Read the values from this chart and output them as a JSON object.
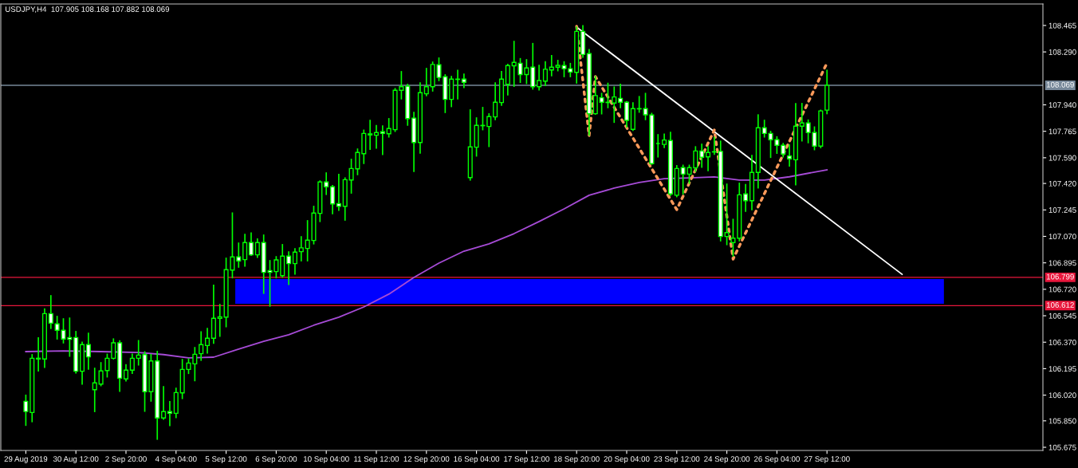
{
  "chart_data": {
    "type": "candlestick",
    "title": "USDJPY,H4  107.905 108.168 107.882 108.069",
    "categories": [
      "29 Aug 2019",
      null,
      null,
      null,
      null,
      null,
      null,
      null,
      "30 Aug 12:00",
      null,
      null,
      null,
      null,
      null,
      null,
      null,
      "2 Sep 20:00",
      null,
      null,
      null,
      null,
      null,
      null,
      null,
      "4 Sep 04:00",
      null,
      null,
      null,
      null,
      null,
      null,
      null,
      "5 Sep 12:00",
      null,
      null,
      null,
      null,
      null,
      null,
      null,
      "6 Sep 20:00",
      null,
      null,
      null,
      null,
      null,
      null,
      null,
      "10 Sep 04:00",
      null,
      null,
      null,
      null,
      null,
      null,
      null,
      "11 Sep 12:00",
      null,
      null,
      null,
      null,
      null,
      null,
      null,
      "12 Sep 20:00",
      null,
      null,
      null,
      null,
      null,
      null,
      null,
      "16 Sep 04:00",
      null,
      null,
      null,
      null,
      null,
      null,
      null,
      "17 Sep 12:00",
      null,
      null,
      null,
      null,
      null,
      null,
      null,
      "18 Sep 20:00",
      null,
      null,
      null,
      null,
      null,
      null,
      null,
      "20 Sep 04:00",
      null,
      null,
      null,
      null,
      null,
      null,
      null,
      "23 Sep 12:00",
      null,
      null,
      null,
      null,
      null,
      null,
      null,
      "24 Sep 20:00",
      null,
      null,
      null,
      null,
      null,
      null,
      null,
      "26 Sep 04:00",
      null,
      null,
      null,
      null,
      null,
      null,
      null,
      "27 Sep 12:00",
      null,
      null,
      null,
      null,
      null,
      null,
      null,
      null,
      null,
      null,
      null,
      null,
      null,
      null,
      null,
      null,
      null,
      null,
      null,
      null,
      null,
      null,
      null,
      null,
      null,
      null,
      null,
      null,
      null,
      null,
      null,
      null,
      null,
      null
    ],
    "ohlc": [
      [
        105.979,
        106.019,
        105.821,
        105.912
      ],
      [
        105.905,
        106.287,
        105.845,
        106.264
      ],
      [
        106.259,
        106.398,
        106.181,
        106.264
      ],
      [
        106.259,
        106.589,
        106.204,
        106.559
      ],
      [
        106.559,
        106.677,
        106.462,
        106.496
      ],
      [
        106.491,
        106.54,
        106.392,
        106.449
      ],
      [
        106.449,
        106.524,
        106.366,
        106.391
      ],
      [
        106.401,
        106.529,
        106.278,
        106.389
      ],
      [
        106.401,
        106.44,
        106.167,
        106.178
      ],
      [
        106.178,
        106.37,
        106.093,
        106.354
      ],
      [
        106.354,
        106.429,
        106.192,
        106.273
      ],
      [
        106.056,
        106.197,
        105.912,
        106.101
      ],
      [
        106.093,
        106.234,
        106.083,
        106.18
      ],
      [
        106.183,
        106.29,
        106.141,
        106.264
      ],
      [
        106.264,
        106.391,
        106.26,
        106.366
      ],
      [
        106.366,
        106.378,
        106.046,
        106.132
      ],
      [
        106.127,
        106.22,
        106.114,
        106.185
      ],
      [
        106.185,
        106.29,
        106.164,
        106.264
      ],
      [
        106.264,
        106.38,
        106.22,
        106.285
      ],
      [
        106.288,
        106.306,
        105.914,
        106.043
      ],
      [
        106.043,
        106.288,
        105.981,
        106.246
      ],
      [
        106.246,
        106.309,
        105.729,
        105.869
      ],
      [
        105.869,
        106.076,
        105.861,
        105.911
      ],
      [
        105.911,
        105.976,
        105.819,
        105.9
      ],
      [
        105.9,
        106.065,
        105.872,
        106.037
      ],
      [
        106.035,
        106.255,
        105.998,
        106.19
      ],
      [
        106.19,
        106.259,
        106.164,
        106.232
      ],
      [
        106.227,
        106.334,
        106.116,
        106.29
      ],
      [
        106.294,
        106.438,
        106.251,
        106.354
      ],
      [
        106.348,
        106.461,
        106.299,
        106.396
      ],
      [
        106.396,
        106.746,
        106.364,
        106.528
      ],
      [
        106.528,
        106.619,
        106.41,
        106.538
      ],
      [
        106.536,
        106.925,
        106.473,
        106.85
      ],
      [
        106.847,
        107.224,
        106.797,
        106.934
      ],
      [
        106.934,
        107.025,
        106.867,
        106.908
      ],
      [
        106.916,
        107.083,
        106.874,
        107.029
      ],
      [
        107.029,
        107.092,
        106.945,
        106.948
      ],
      [
        106.948,
        107.052,
        106.932,
        107.029
      ],
      [
        107.029,
        107.078,
        106.694,
        106.832
      ],
      [
        106.844,
        106.909,
        106.609,
        106.832
      ],
      [
        106.837,
        106.935,
        106.797,
        106.914
      ],
      [
        106.81,
        107.015,
        106.801,
        106.939
      ],
      [
        106.939,
        106.967,
        106.752,
        106.89
      ],
      [
        106.89,
        106.988,
        106.821,
        106.966
      ],
      [
        106.969,
        107.067,
        106.909,
        106.994
      ],
      [
        106.99,
        107.173,
        106.909,
        107.045
      ],
      [
        107.043,
        107.268,
        107.021,
        107.224
      ],
      [
        107.222,
        107.436,
        107.169,
        107.43
      ],
      [
        107.43,
        107.489,
        107.348,
        107.398
      ],
      [
        107.398,
        107.406,
        107.22,
        107.285
      ],
      [
        107.287,
        107.479,
        107.243,
        107.269
      ],
      [
        107.269,
        107.456,
        107.178,
        107.445
      ],
      [
        107.443,
        107.579,
        107.357,
        107.519
      ],
      [
        107.517,
        107.647,
        107.479,
        107.625
      ],
      [
        107.617,
        107.772,
        107.553,
        107.751
      ],
      [
        107.741,
        107.837,
        107.647,
        107.748
      ],
      [
        107.739,
        107.802,
        107.654,
        107.757
      ],
      [
        107.762,
        107.8,
        107.612,
        107.751
      ],
      [
        107.749,
        107.848,
        107.728,
        107.783
      ],
      [
        107.776,
        108.047,
        107.765,
        108.036
      ],
      [
        108.036,
        108.159,
        107.98,
        108.06
      ],
      [
        108.063,
        108.075,
        107.806,
        107.849
      ],
      [
        107.852,
        107.889,
        107.5,
        107.691
      ],
      [
        107.691,
        108.085,
        107.621,
        108.02
      ],
      [
        108.013,
        108.18,
        108.001,
        108.06
      ],
      [
        108.06,
        108.222,
        108.032,
        108.207
      ],
      [
        108.205,
        108.249,
        108.101,
        108.121
      ],
      [
        108.126,
        108.138,
        107.89,
        107.976
      ],
      [
        107.976,
        108.127,
        107.929,
        108.11
      ],
      [
        108.108,
        108.168,
        107.98,
        108.11
      ],
      [
        108.11,
        108.142,
        108.055,
        108.089
      ],
      [
        107.459,
        107.906,
        107.443,
        107.662
      ],
      [
        107.66,
        107.853,
        107.602,
        107.804
      ],
      [
        107.802,
        107.922,
        107.776,
        107.804
      ],
      [
        107.797,
        107.88,
        107.665,
        107.862
      ],
      [
        107.86,
        108.085,
        107.843,
        107.957
      ],
      [
        107.955,
        108.159,
        107.938,
        108.11
      ],
      [
        108.076,
        108.207,
        108.006,
        108.2
      ],
      [
        108.198,
        108.359,
        108.063,
        108.221
      ],
      [
        108.215,
        108.245,
        108.089,
        108.14
      ],
      [
        108.14,
        108.238,
        108.082,
        108.184
      ],
      [
        108.189,
        108.345,
        108.045,
        108.06
      ],
      [
        108.06,
        108.201,
        108.039,
        108.101
      ],
      [
        108.097,
        108.224,
        108.068,
        108.175
      ],
      [
        108.171,
        108.265,
        108.133,
        108.189
      ],
      [
        108.189,
        108.233,
        108.166,
        108.201
      ],
      [
        108.2,
        108.224,
        108.127,
        108.179
      ],
      [
        108.179,
        108.213,
        108.127,
        108.157
      ],
      [
        108.155,
        108.454,
        108.085,
        108.426
      ],
      [
        108.426,
        108.463,
        108.256,
        108.273
      ],
      [
        108.279,
        108.305,
        107.74,
        107.881
      ],
      [
        107.881,
        108.127,
        107.879,
        108.001
      ],
      [
        107.987,
        108.015,
        107.881,
        107.957
      ],
      [
        107.955,
        108.082,
        107.922,
        107.957
      ],
      [
        107.952,
        108.057,
        107.825,
        107.992
      ],
      [
        107.983,
        108.075,
        107.922,
        107.957
      ],
      [
        107.957,
        107.961,
        107.794,
        107.837
      ],
      [
        107.778,
        107.953,
        107.772,
        107.915
      ],
      [
        107.913,
        107.994,
        107.892,
        107.915
      ],
      [
        107.915,
        108.015,
        107.843,
        107.874
      ],
      [
        107.873,
        107.883,
        107.548,
        107.551
      ],
      [
        107.684,
        107.742,
        107.596,
        107.684
      ],
      [
        107.678,
        107.746,
        107.658,
        107.707
      ],
      [
        107.704,
        107.757,
        107.342,
        107.351
      ],
      [
        107.342,
        107.537,
        107.333,
        107.519
      ],
      [
        107.525,
        107.54,
        107.351,
        107.482
      ],
      [
        107.482,
        107.54,
        107.421,
        107.525
      ],
      [
        107.523,
        107.662,
        107.5,
        107.635
      ],
      [
        107.635,
        107.679,
        107.528,
        107.593
      ],
      [
        107.596,
        107.662,
        107.505,
        107.625
      ],
      [
        107.628,
        107.725,
        107.614,
        107.63
      ],
      [
        107.632,
        107.699,
        107.041,
        107.069
      ],
      [
        107.069,
        107.415,
        107.016,
        107.095
      ],
      [
        107.029,
        107.182,
        106.94,
        107.058
      ],
      [
        107.058,
        107.421,
        107.041,
        107.345
      ],
      [
        107.351,
        107.412,
        107.236,
        107.306
      ],
      [
        107.306,
        107.604,
        107.247,
        107.493
      ],
      [
        107.493,
        107.873,
        107.391,
        107.788
      ],
      [
        107.788,
        107.837,
        107.728,
        107.751
      ],
      [
        107.751,
        107.764,
        107.593,
        107.709
      ],
      [
        107.709,
        107.728,
        107.62,
        107.672
      ],
      [
        107.672,
        107.684,
        107.596,
        107.614
      ],
      [
        107.602,
        107.675,
        107.535,
        107.583
      ],
      [
        107.577,
        107.948,
        107.412,
        107.799
      ],
      [
        107.799,
        107.948,
        107.702,
        107.82
      ],
      [
        107.82,
        107.839,
        107.69,
        107.757
      ],
      [
        107.757,
        107.793,
        107.644,
        107.667
      ],
      [
        107.667,
        107.904,
        107.657,
        107.9
      ],
      [
        107.905,
        108.168,
        107.882,
        108.069
      ],
      null,
      null,
      null,
      null,
      null,
      null,
      null,
      null,
      null,
      null,
      null,
      null,
      null,
      null,
      null,
      null,
      null,
      null,
      null,
      null,
      null,
      null,
      null,
      null,
      null,
      null,
      null,
      null,
      null,
      null,
      null,
      null,
      null,
      null
    ],
    "series": [
      {
        "type": "line",
        "color": "#a64bd6",
        "line_style": "solid",
        "values": [
          106.308,
          null,
          null,
          null,
          null,
          null,
          106.313,
          null,
          null,
          null,
          null,
          null,
          106.308,
          null,
          null,
          null,
          null,
          null,
          106.302,
          null,
          null,
          null,
          106.288,
          null,
          null,
          null,
          106.266,
          null,
          null,
          null,
          106.271,
          null,
          null,
          null,
          106.324,
          null,
          null,
          null,
          106.376,
          null,
          null,
          null,
          106.419,
          null,
          null,
          null,
          106.482,
          null,
          null,
          null,
          106.535,
          null,
          null,
          null,
          106.603,
          null,
          null,
          null,
          106.688,
          null,
          null,
          null,
          106.798,
          null,
          null,
          null,
          106.893,
          null,
          null,
          null,
          106.972,
          null,
          null,
          null,
          107.02,
          null,
          null,
          null,
          107.088,
          null,
          null,
          null,
          107.168,
          null,
          null,
          null,
          107.252,
          null,
          null,
          null,
          107.342,
          null,
          null,
          null,
          107.389,
          null,
          null,
          null,
          107.426,
          null,
          null,
          null,
          107.452,
          null,
          null,
          null,
          107.457,
          null,
          null,
          null,
          107.463,
          null,
          null,
          null,
          107.442,
          null,
          null,
          null,
          107.442,
          null,
          null,
          null,
          107.464,
          null,
          null,
          null,
          107.495,
          null,
          107.51,
          null,
          null,
          null,
          null,
          null,
          null,
          null,
          null,
          null,
          null,
          null,
          null,
          null,
          null,
          null,
          null,
          null,
          null,
          null,
          null,
          null,
          null,
          null,
          null,
          null,
          null,
          null,
          null,
          null,
          null,
          null,
          null,
          null,
          null
        ]
      },
      {
        "type": "line",
        "color": "#ffffff",
        "line_style": "solid",
        "values": [
          null,
          null,
          null,
          null,
          null,
          null,
          null,
          null,
          null,
          null,
          null,
          null,
          null,
          null,
          null,
          null,
          null,
          null,
          null,
          null,
          null,
          null,
          null,
          null,
          null,
          null,
          null,
          null,
          null,
          null,
          null,
          null,
          null,
          null,
          null,
          null,
          null,
          null,
          null,
          null,
          null,
          null,
          null,
          null,
          null,
          null,
          null,
          null,
          null,
          null,
          null,
          null,
          null,
          null,
          null,
          null,
          null,
          null,
          null,
          null,
          null,
          null,
          null,
          null,
          null,
          null,
          null,
          null,
          null,
          null,
          null,
          null,
          null,
          null,
          null,
          null,
          null,
          null,
          null,
          null,
          null,
          null,
          null,
          null,
          null,
          null,
          null,
          null,
          108.454,
          null,
          null,
          null,
          null,
          null,
          null,
          null,
          null,
          null,
          null,
          null,
          null,
          null,
          null,
          null,
          null,
          null,
          null,
          null,
          null,
          null,
          null,
          null,
          null,
          null,
          null,
          null,
          null,
          null,
          null,
          null,
          null,
          null,
          null,
          null,
          null,
          null,
          null,
          null,
          null,
          null,
          null,
          null,
          null,
          null,
          null,
          null,
          null,
          null,
          null,
          null,
          106.819,
          null,
          null,
          null,
          null,
          null,
          null,
          null,
          null,
          null,
          null,
          null,
          null,
          null,
          null,
          null,
          null,
          null,
          null,
          null,
          null,
          null,
          null
        ]
      },
      {
        "type": "line",
        "color": "#ff9a5a",
        "line_style": "dotted",
        "values": [
          null,
          null,
          null,
          null,
          null,
          null,
          null,
          null,
          null,
          null,
          null,
          null,
          null,
          null,
          null,
          null,
          null,
          null,
          null,
          null,
          null,
          null,
          null,
          null,
          null,
          null,
          null,
          null,
          null,
          null,
          null,
          null,
          null,
          null,
          null,
          null,
          null,
          null,
          null,
          null,
          null,
          null,
          null,
          null,
          null,
          null,
          null,
          null,
          null,
          null,
          null,
          null,
          null,
          null,
          null,
          null,
          null,
          null,
          null,
          null,
          null,
          null,
          null,
          null,
          null,
          null,
          null,
          null,
          null,
          null,
          null,
          null,
          null,
          null,
          null,
          null,
          null,
          null,
          null,
          null,
          null,
          null,
          null,
          null,
          null,
          null,
          null,
          null,
          108.46,
          null,
          107.737,
          108.127,
          null,
          null,
          null,
          null,
          null,
          null,
          null,
          null,
          null,
          null,
          null,
          null,
          107.247,
          null,
          null,
          null,
          null,
          null,
          107.774,
          null,
          null,
          106.92,
          null,
          null,
          null,
          null,
          null,
          null,
          null,
          null,
          null,
          null,
          null,
          null,
          null,
          null,
          108.217,
          null,
          null,
          null,
          null,
          null,
          null,
          null,
          null,
          null,
          null,
          null,
          null,
          null,
          null,
          null,
          null,
          null,
          null,
          null,
          null,
          null,
          null,
          null,
          null,
          null,
          null,
          null,
          null,
          null,
          null,
          null,
          null,
          null,
          null
        ]
      }
    ],
    "ylim": [
      105.654,
      108.607
    ],
    "yticks": [
      {
        "value": 108.465,
        "label": "108.465"
      },
      {
        "value": 108.29,
        "label": "108.290"
      },
      {
        "value": 107.94,
        "label": "107.940"
      },
      {
        "value": 107.765,
        "label": "107.765"
      },
      {
        "value": 107.59,
        "label": "107.590"
      },
      {
        "value": 107.42,
        "label": "107.420"
      },
      {
        "value": 107.245,
        "label": "107.245"
      },
      {
        "value": 107.07,
        "label": "107.070"
      },
      {
        "value": 106.895,
        "label": "106.895"
      },
      {
        "value": 106.72,
        "label": "106.720"
      },
      {
        "value": 106.545,
        "label": "106.545"
      },
      {
        "value": 106.37,
        "label": "106.370"
      },
      {
        "value": 106.195,
        "label": "106.195"
      },
      {
        "value": 106.02,
        "label": "106.020"
      },
      {
        "value": 105.85,
        "label": "105.850"
      },
      {
        "value": 105.675,
        "label": "105.675"
      }
    ],
    "ref_lines": [
      {
        "axis": "y",
        "value": 108.069,
        "label": "108.069",
        "color": "#778899",
        "line_style": "solid"
      },
      {
        "axis": "y",
        "value": 106.799,
        "label": "106.799",
        "color": "#e8173c",
        "line_style": "solid"
      },
      {
        "axis": "y",
        "value": 106.612,
        "label": "106.612",
        "color": "#e8173c",
        "line_style": "solid"
      }
    ],
    "bands": [
      {
        "axis": "y",
        "from": 106.624,
        "to": 106.788,
        "color": "#0000ff"
      }
    ],
    "marker": "none"
  }
}
